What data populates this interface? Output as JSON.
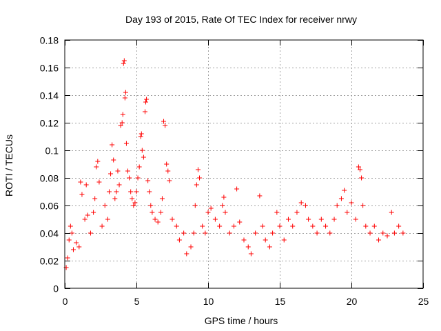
{
  "chart_data": {
    "type": "scatter",
    "title": "Day 193 of 2015, Rate Of TEC Index for receiver nrwy",
    "xlabel": "GPS time / hours",
    "ylabel": "ROTI / TECUs",
    "xlim": [
      0,
      25
    ],
    "ylim": [
      0,
      0.18
    ],
    "x_ticks": [
      0,
      5,
      10,
      15,
      20,
      25
    ],
    "x_tick_labels": [
      "0",
      "5",
      "10",
      "15",
      "20",
      "25"
    ],
    "y_ticks": [
      0,
      0.02,
      0.04,
      0.06,
      0.08,
      0.1,
      0.12,
      0.14,
      0.16,
      0.18
    ],
    "y_tick_labels": [
      "0",
      "0.02",
      "0.04",
      "0.06",
      "0.08",
      "0.1",
      "0.12",
      "0.14",
      "0.16",
      "0.18"
    ],
    "grid": true,
    "marker": "+",
    "color": "#ff0000",
    "series": [
      {
        "name": "ROTI",
        "points": [
          [
            0.1,
            0.015
          ],
          [
            0.2,
            0.022
          ],
          [
            0.3,
            0.035
          ],
          [
            0.4,
            0.045
          ],
          [
            0.5,
            0.04
          ],
          [
            0.6,
            0.028
          ],
          [
            0.8,
            0.033
          ],
          [
            1.0,
            0.03
          ],
          [
            1.1,
            0.077
          ],
          [
            1.2,
            0.068
          ],
          [
            1.4,
            0.05
          ],
          [
            1.5,
            0.075
          ],
          [
            1.6,
            0.053
          ],
          [
            1.8,
            0.04
          ],
          [
            2.0,
            0.055
          ],
          [
            2.1,
            0.065
          ],
          [
            2.2,
            0.088
          ],
          [
            2.3,
            0.092
          ],
          [
            2.4,
            0.077
          ],
          [
            2.6,
            0.045
          ],
          [
            2.8,
            0.06
          ],
          [
            3.0,
            0.05
          ],
          [
            3.1,
            0.07
          ],
          [
            3.2,
            0.083
          ],
          [
            3.3,
            0.104
          ],
          [
            3.4,
            0.093
          ],
          [
            3.5,
            0.065
          ],
          [
            3.6,
            0.07
          ],
          [
            3.7,
            0.085
          ],
          [
            3.8,
            0.075
          ],
          [
            3.9,
            0.118
          ],
          [
            4.0,
            0.12
          ],
          [
            4.05,
            0.126
          ],
          [
            4.1,
            0.163
          ],
          [
            4.15,
            0.165
          ],
          [
            4.2,
            0.138
          ],
          [
            4.25,
            0.142
          ],
          [
            4.3,
            0.105
          ],
          [
            4.4,
            0.085
          ],
          [
            4.5,
            0.08
          ],
          [
            4.6,
            0.07
          ],
          [
            4.7,
            0.065
          ],
          [
            4.8,
            0.06
          ],
          [
            4.9,
            0.062
          ],
          [
            5.0,
            0.07
          ],
          [
            5.1,
            0.08
          ],
          [
            5.2,
            0.088
          ],
          [
            5.3,
            0.11
          ],
          [
            5.35,
            0.112
          ],
          [
            5.4,
            0.1
          ],
          [
            5.5,
            0.095
          ],
          [
            5.6,
            0.128
          ],
          [
            5.65,
            0.135
          ],
          [
            5.7,
            0.137
          ],
          [
            5.8,
            0.078
          ],
          [
            5.9,
            0.07
          ],
          [
            6.0,
            0.06
          ],
          [
            6.1,
            0.055
          ],
          [
            6.3,
            0.05
          ],
          [
            6.5,
            0.048
          ],
          [
            6.7,
            0.055
          ],
          [
            6.8,
            0.065
          ],
          [
            6.9,
            0.121
          ],
          [
            7.0,
            0.118
          ],
          [
            7.1,
            0.09
          ],
          [
            7.2,
            0.085
          ],
          [
            7.3,
            0.078
          ],
          [
            7.5,
            0.05
          ],
          [
            7.8,
            0.045
          ],
          [
            8.0,
            0.035
          ],
          [
            8.3,
            0.04
          ],
          [
            8.5,
            0.025
          ],
          [
            8.8,
            0.03
          ],
          [
            9.0,
            0.04
          ],
          [
            9.1,
            0.06
          ],
          [
            9.2,
            0.075
          ],
          [
            9.3,
            0.086
          ],
          [
            9.4,
            0.08
          ],
          [
            9.6,
            0.045
          ],
          [
            9.8,
            0.04
          ],
          [
            10.0,
            0.055
          ],
          [
            10.2,
            0.058
          ],
          [
            10.5,
            0.05
          ],
          [
            10.8,
            0.045
          ],
          [
            11.0,
            0.06
          ],
          [
            11.1,
            0.066
          ],
          [
            11.2,
            0.055
          ],
          [
            11.5,
            0.04
          ],
          [
            11.8,
            0.045
          ],
          [
            12.0,
            0.072
          ],
          [
            12.2,
            0.048
          ],
          [
            12.5,
            0.035
          ],
          [
            12.8,
            0.03
          ],
          [
            13.0,
            0.025
          ],
          [
            13.3,
            0.04
          ],
          [
            13.6,
            0.067
          ],
          [
            13.8,
            0.045
          ],
          [
            14.0,
            0.035
          ],
          [
            14.3,
            0.03
          ],
          [
            14.5,
            0.04
          ],
          [
            14.8,
            0.055
          ],
          [
            15.0,
            0.045
          ],
          [
            15.3,
            0.035
          ],
          [
            15.6,
            0.05
          ],
          [
            15.9,
            0.045
          ],
          [
            16.2,
            0.055
          ],
          [
            16.5,
            0.062
          ],
          [
            16.8,
            0.06
          ],
          [
            17.0,
            0.05
          ],
          [
            17.3,
            0.045
          ],
          [
            17.6,
            0.04
          ],
          [
            17.9,
            0.05
          ],
          [
            18.2,
            0.045
          ],
          [
            18.5,
            0.04
          ],
          [
            18.8,
            0.05
          ],
          [
            19.0,
            0.06
          ],
          [
            19.3,
            0.065
          ],
          [
            19.5,
            0.071
          ],
          [
            19.7,
            0.055
          ],
          [
            20.0,
            0.062
          ],
          [
            20.3,
            0.05
          ],
          [
            20.5,
            0.088
          ],
          [
            20.6,
            0.086
          ],
          [
            20.7,
            0.08
          ],
          [
            20.8,
            0.06
          ],
          [
            21.0,
            0.045
          ],
          [
            21.3,
            0.04
          ],
          [
            21.6,
            0.045
          ],
          [
            21.9,
            0.035
          ],
          [
            22.2,
            0.04
          ],
          [
            22.5,
            0.038
          ],
          [
            22.8,
            0.055
          ],
          [
            23.0,
            0.04
          ],
          [
            23.3,
            0.045
          ],
          [
            23.6,
            0.04
          ]
        ]
      }
    ]
  }
}
